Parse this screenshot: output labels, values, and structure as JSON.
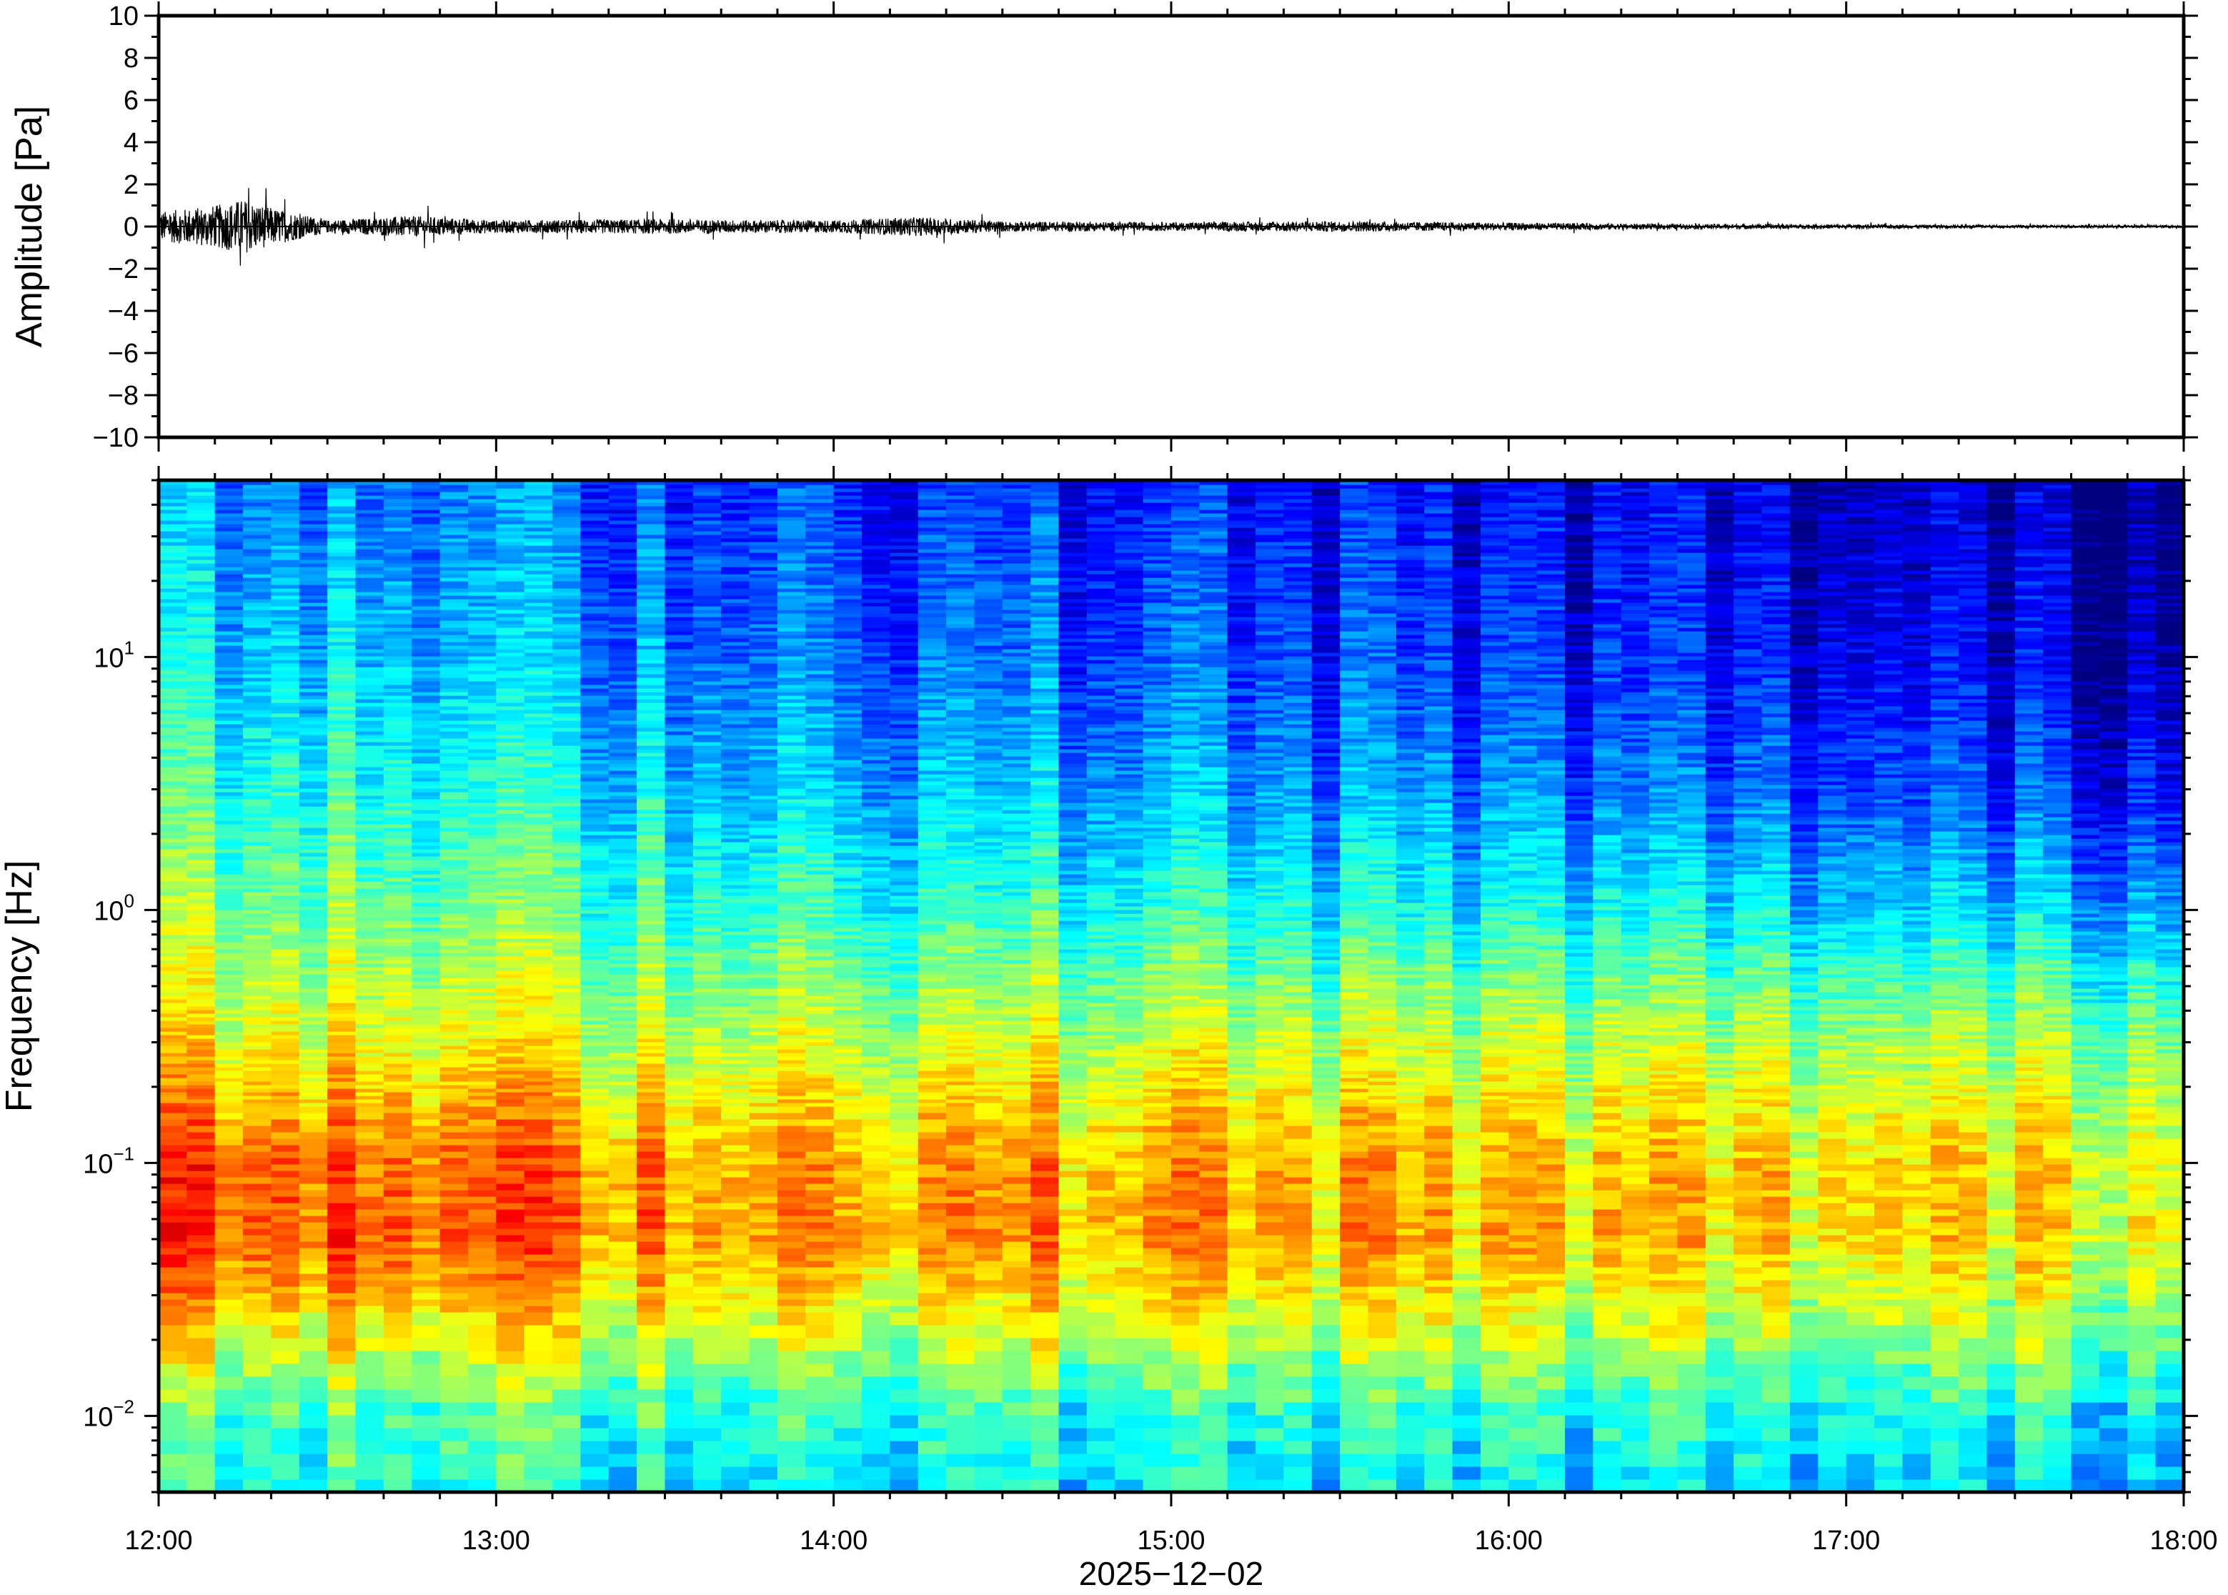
{
  "chart_data": [
    {
      "type": "line",
      "ylabel": "Amplitude [Pa]",
      "ylim": [
        -10,
        10
      ],
      "yticks": [
        "10",
        "8",
        "6",
        "4",
        "2",
        "0",
        "−2",
        "−4",
        "−6",
        "−8",
        "−10"
      ],
      "ytick_values": [
        10,
        8,
        6,
        4,
        2,
        0,
        -2,
        -4,
        -6,
        -8,
        -10
      ],
      "x_range": [
        "2025-12-02T12:00",
        "2025-12-02T18:00"
      ],
      "envelope": {
        "times": [
          "12:00",
          "12:10",
          "12:15",
          "12:20",
          "12:30",
          "12:45",
          "13:00",
          "13:30",
          "13:45",
          "14:00",
          "14:15",
          "14:30",
          "15:00",
          "15:30",
          "16:00",
          "16:30",
          "17:00",
          "17:30",
          "18:00"
        ],
        "amplitude": [
          0.7,
          1.0,
          1.3,
          0.9,
          0.3,
          0.5,
          0.3,
          0.35,
          0.3,
          0.3,
          0.45,
          0.25,
          0.2,
          0.25,
          0.18,
          0.12,
          0.1,
          0.07,
          0.06
        ]
      },
      "color": "#000000"
    },
    {
      "type": "heatmap",
      "ylabel": "Frequency [Hz]",
      "yscale": "log",
      "ylim": [
        0.005,
        50
      ],
      "yticks": [
        {
          "base": "10",
          "exp": "1",
          "value": 10
        },
        {
          "base": "10",
          "exp": "0",
          "value": 1
        },
        {
          "base": "10",
          "exp": "−1",
          "value": 0.1
        },
        {
          "base": "10",
          "exp": "−2",
          "value": 0.01
        }
      ],
      "colormap": "jet",
      "xticks": [
        "12:00",
        "13:00",
        "14:00",
        "15:00",
        "16:00",
        "17:00",
        "18:00"
      ],
      "xlabel": "2025−12−02",
      "x_range": [
        "2025-12-02T12:00",
        "2025-12-02T18:00"
      ],
      "intensity_profile": {
        "description_points_freq_hz": [
          0.005,
          0.01,
          0.02,
          0.05,
          0.1,
          0.3,
          1,
          3,
          10,
          50
        ],
        "relative_level_0_1_early": [
          0.4,
          0.45,
          0.62,
          0.8,
          0.78,
          0.62,
          0.5,
          0.42,
          0.34,
          0.26
        ],
        "relative_level_0_1_late": [
          0.32,
          0.36,
          0.5,
          0.62,
          0.62,
          0.52,
          0.3,
          0.15,
          0.07,
          0.03
        ]
      }
    }
  ]
}
